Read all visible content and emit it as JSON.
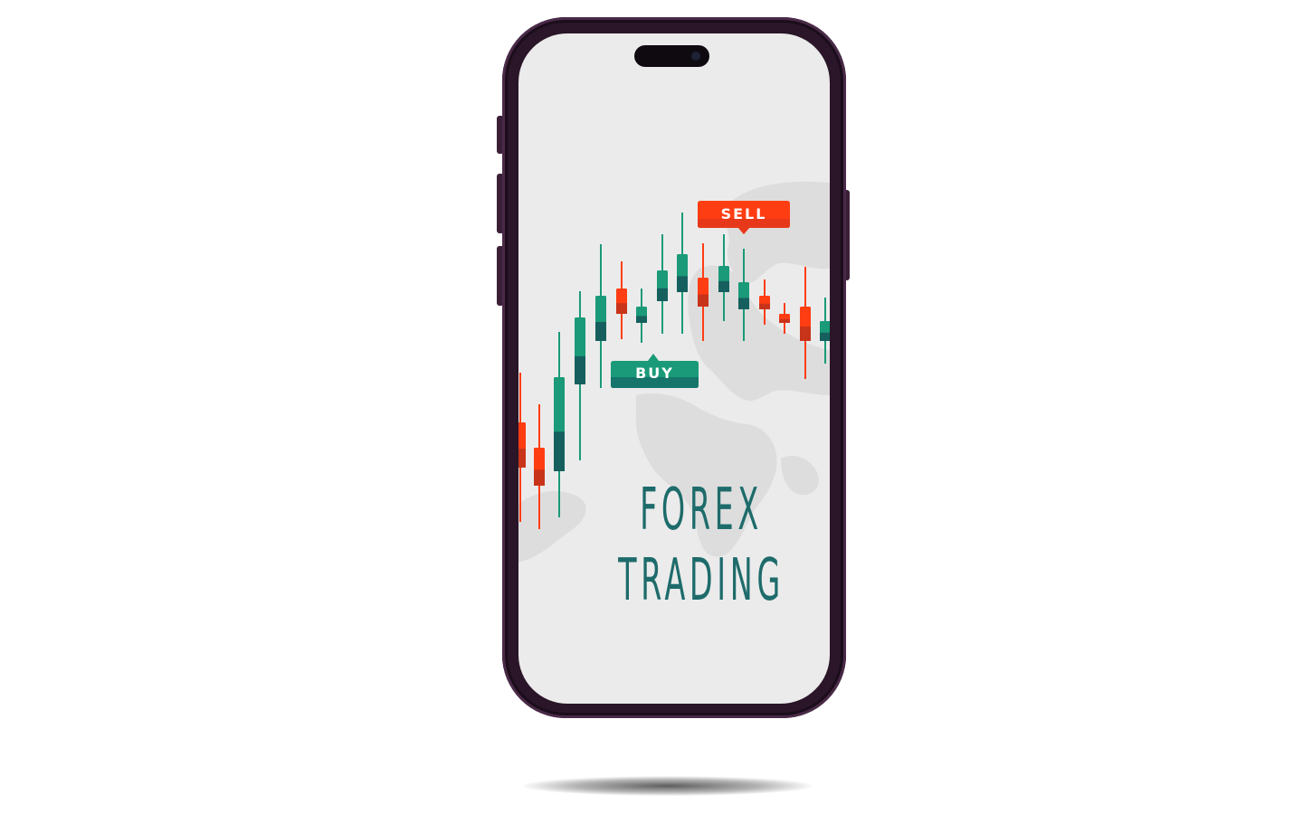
{
  "colors": {
    "phone_frame": "#2a1628",
    "screen_bg": "#ebebeb",
    "bull": "#1a9a78",
    "bull_dark": "#15605e",
    "bear": "#ff3d12",
    "bear_dark": "#c8341a",
    "title": "#1e6b6b",
    "map": "#dcdcdc"
  },
  "screen": {
    "title_line_1": "FOREX",
    "title_line_2": "TRADING",
    "sell_label": "SELL",
    "buy_label": "BUY"
  },
  "icons": {
    "notch": "dynamic-island-icon",
    "world_map": "world-map-icon",
    "chart": "candlestick-chart-icon"
  }
}
